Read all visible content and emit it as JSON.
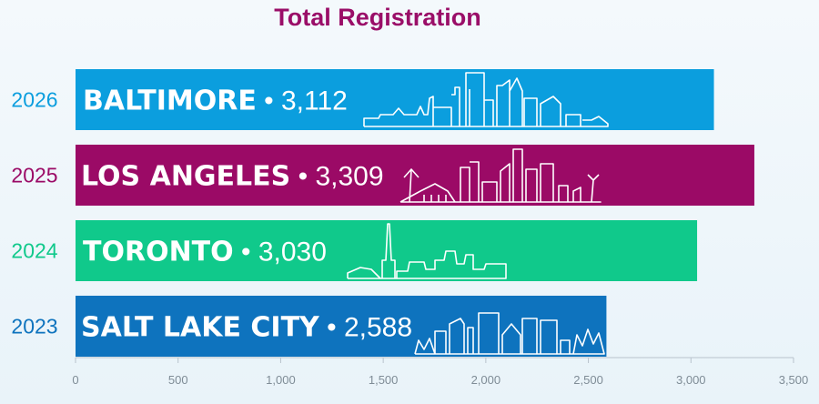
{
  "colors": {
    "title": "#9a0e68",
    "baltimore": "#0b9ede",
    "los_angeles": "#9b0a66",
    "toronto": "#10c98b",
    "salt_lake_city": "#0e73be",
    "axis": "#b8c3cc"
  },
  "chart_data": {
    "type": "bar",
    "orientation": "horizontal",
    "title": "Total Registration",
    "categories": [
      "2026",
      "2025",
      "2024",
      "2023"
    ],
    "series": [
      {
        "values": [
          3112,
          3309,
          3030,
          2588
        ],
        "bar_labels": [
          "BALTIMORE",
          "LOS ANGELES",
          "TORONTO",
          "SALT LAKE CITY"
        ],
        "value_labels": [
          "3,112",
          "3,309",
          "3,030",
          "2,588"
        ]
      }
    ],
    "xlim": [
      0,
      3500
    ],
    "xticks": [
      0,
      500,
      1000,
      1500,
      2000,
      2500,
      3000,
      3500
    ],
    "xtick_labels": [
      "0",
      "500",
      "1,000",
      "1,500",
      "2,000",
      "2,500",
      "3,000",
      "3,500"
    ],
    "grid": false,
    "legend": "none",
    "bar_decoration": "white line-art city skyline"
  }
}
